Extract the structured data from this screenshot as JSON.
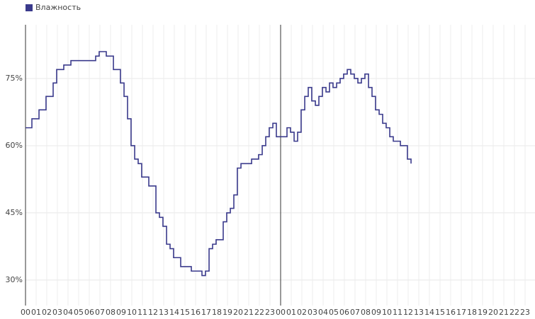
{
  "chart_data": {
    "type": "line",
    "series": [
      {
        "name": "Влажность",
        "color": "#3a3a8c",
        "x": [
          0,
          0.6,
          1.27,
          1.93,
          2.6,
          2.93,
          3.6,
          4.27,
          4.93,
          5.93,
          6.6,
          6.93,
          7.6,
          8.27,
          8.67,
          8.93,
          9.27,
          9.6,
          9.93,
          10.27,
          10.6,
          10.93,
          11.6,
          11.93,
          12.27,
          12.6,
          12.93,
          13.27,
          13.6,
          13.93,
          14.6,
          15.27,
          15.6,
          15.93,
          16.27,
          16.6,
          16.93,
          17.27,
          17.6,
          17.93,
          18.6,
          18.93,
          19.27,
          19.6,
          19.93,
          20.27,
          20.93,
          21.27,
          21.93,
          22.27,
          22.6,
          22.93,
          23.27,
          23.6,
          24,
          24.6,
          24.93,
          25.27,
          25.6,
          25.93,
          26.27,
          26.6,
          26.93,
          27.27,
          27.6,
          27.93,
          28.27,
          28.6,
          28.93,
          29.27,
          29.6,
          29.93,
          30.27,
          30.6,
          30.93,
          31.27,
          31.6,
          31.93,
          32.27,
          32.6,
          32.93,
          33.27,
          33.6,
          33.93,
          34.27,
          34.6,
          34.93,
          35.27,
          35.6,
          35.93,
          36.27
        ],
        "values": [
          64,
          66,
          68,
          71,
          74,
          77,
          78,
          79,
          79,
          79,
          80,
          81,
          80,
          77,
          77,
          74,
          71,
          66,
          60,
          57,
          56,
          53,
          51,
          51,
          45,
          44,
          42,
          38,
          37,
          35,
          33,
          33,
          32,
          32,
          32,
          31,
          32,
          37,
          38,
          39,
          43,
          45,
          46,
          49,
          55,
          56,
          56,
          57,
          58,
          60,
          62,
          64,
          65,
          62,
          62,
          64,
          63,
          61,
          63,
          68,
          71,
          73,
          70,
          69,
          71,
          73,
          72,
          74,
          73,
          74,
          75,
          76,
          77,
          76,
          75,
          74,
          75,
          76,
          73,
          71,
          68,
          67,
          65,
          64,
          62,
          61,
          61,
          60,
          60,
          57,
          56
        ]
      }
    ],
    "xlim": [
      0,
      48
    ],
    "ylim": [
      24.3,
      87
    ],
    "xticks": [
      {
        "value": 0,
        "label": "00"
      },
      {
        "value": 1,
        "label": "01"
      },
      {
        "value": 2,
        "label": "02"
      },
      {
        "value": 3,
        "label": "03"
      },
      {
        "value": 4,
        "label": "04"
      },
      {
        "value": 5,
        "label": "05"
      },
      {
        "value": 6,
        "label": "06"
      },
      {
        "value": 7,
        "label": "07"
      },
      {
        "value": 8,
        "label": "08"
      },
      {
        "value": 9,
        "label": "09"
      },
      {
        "value": 10,
        "label": "10"
      },
      {
        "value": 11,
        "label": "11"
      },
      {
        "value": 12,
        "label": "12"
      },
      {
        "value": 13,
        "label": "13"
      },
      {
        "value": 14,
        "label": "14"
      },
      {
        "value": 15,
        "label": "15"
      },
      {
        "value": 16,
        "label": "16"
      },
      {
        "value": 17,
        "label": "17"
      },
      {
        "value": 18,
        "label": "18"
      },
      {
        "value": 19,
        "label": "19"
      },
      {
        "value": 20,
        "label": "20"
      },
      {
        "value": 21,
        "label": "21"
      },
      {
        "value": 22,
        "label": "22"
      },
      {
        "value": 23,
        "label": "23"
      },
      {
        "value": 24,
        "label": "00"
      },
      {
        "value": 25,
        "label": "01"
      },
      {
        "value": 26,
        "label": "02"
      },
      {
        "value": 27,
        "label": "03"
      },
      {
        "value": 28,
        "label": "04"
      },
      {
        "value": 29,
        "label": "05"
      },
      {
        "value": 30,
        "label": "06"
      },
      {
        "value": 31,
        "label": "07"
      },
      {
        "value": 32,
        "label": "08"
      },
      {
        "value": 33,
        "label": "09"
      },
      {
        "value": 34,
        "label": "10"
      },
      {
        "value": 35,
        "label": "11"
      },
      {
        "value": 36,
        "label": "12"
      },
      {
        "value": 37,
        "label": "13"
      },
      {
        "value": 38,
        "label": "14"
      },
      {
        "value": 39,
        "label": "15"
      },
      {
        "value": 40,
        "label": "16"
      },
      {
        "value": 41,
        "label": "17"
      },
      {
        "value": 42,
        "label": "18"
      },
      {
        "value": 43,
        "label": "19"
      },
      {
        "value": 44,
        "label": "20"
      },
      {
        "value": 45,
        "label": "21"
      },
      {
        "value": 46,
        "label": "22"
      },
      {
        "value": 47,
        "label": "23"
      }
    ],
    "yticks": [
      {
        "value": 30,
        "label": "30%"
      },
      {
        "value": 45,
        "label": "45%"
      },
      {
        "value": 60,
        "label": "60%"
      },
      {
        "value": 75,
        "label": "75%"
      }
    ],
    "grid": true,
    "step": true,
    "legend": "top-left"
  }
}
